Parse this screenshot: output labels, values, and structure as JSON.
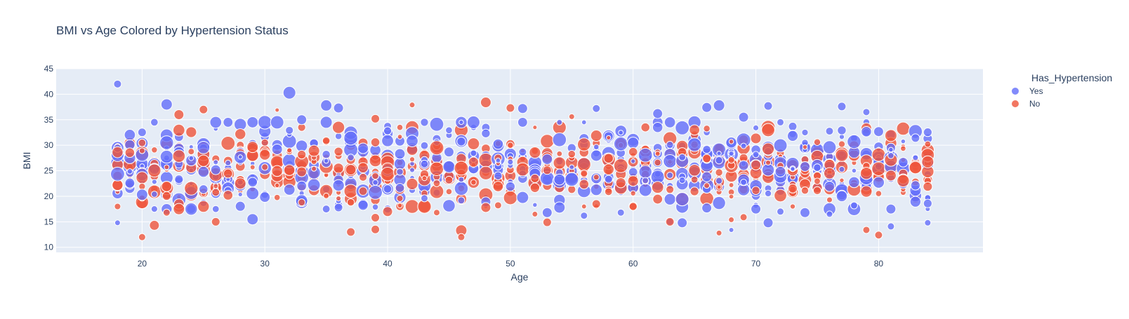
{
  "chart_data": {
    "type": "scatter",
    "title": "BMI vs Age Colored by Hypertension Status",
    "xlabel": "Age",
    "ylabel": "BMI",
    "xlim": [
      13,
      88.5
    ],
    "ylim": [
      9,
      45
    ],
    "xticks": [
      20,
      30,
      40,
      50,
      60,
      70,
      80
    ],
    "yticks": [
      10,
      15,
      20,
      25,
      30,
      35,
      40,
      45
    ],
    "grid": true,
    "legend": {
      "title": "Has_Hypertension",
      "position": "top-right"
    },
    "age_range": [
      18,
      84
    ],
    "series": [
      {
        "name": "Yes",
        "color": "#636efa",
        "points": [
          [
            18,
            42.0
          ],
          [
            22,
            38.0
          ],
          [
            32,
            40.3
          ],
          [
            35,
            37.8
          ],
          [
            36,
            37.3
          ],
          [
            51,
            37.2
          ],
          [
            57,
            37.2
          ],
          [
            66,
            37.4
          ],
          [
            67,
            37.8
          ],
          [
            69,
            35.5
          ],
          [
            71,
            37.7
          ],
          [
            77,
            37.6
          ],
          [
            79,
            36.5
          ],
          [
            62,
            36.2
          ],
          [
            33,
            35.0
          ],
          [
            18,
            14.8
          ],
          [
            29,
            15.5
          ],
          [
            53,
            16.8
          ],
          [
            54,
            17.8
          ],
          [
            64,
            14.8
          ],
          [
            66,
            17.7
          ],
          [
            70,
            17.5
          ],
          [
            71,
            14.8
          ],
          [
            74,
            16.8
          ],
          [
            81,
            17.5
          ],
          [
            81,
            14.1
          ],
          [
            84,
            14.8
          ],
          [
            63,
            15.0
          ],
          [
            56,
            16.2
          ],
          [
            46,
            19.2
          ],
          [
            36,
            17.8
          ],
          [
            43,
            19.6
          ],
          [
            59,
            16.8
          ],
          [
            68,
            13.4
          ],
          [
            72,
            17.0
          ],
          [
            76,
            16.5
          ],
          [
            78,
            18.2
          ]
        ],
        "sizes": [
          11,
          16,
          18,
          16,
          14,
          14,
          11,
          14,
          16,
          14,
          12,
          12,
          10,
          14,
          14,
          8,
          16,
          14,
          16,
          14,
          14,
          14,
          14,
          14,
          14,
          10,
          9,
          10,
          10,
          10,
          12,
          10,
          10,
          7,
          10,
          9,
          10
        ]
      },
      {
        "name": "No",
        "color": "#ef553b",
        "points": [
          [
            48,
            38.4
          ],
          [
            50,
            37.3
          ],
          [
            31,
            36.9
          ],
          [
            25,
            37.0
          ],
          [
            23,
            36.0
          ],
          [
            39,
            35.2
          ],
          [
            55,
            35.6
          ],
          [
            42,
            37.9
          ],
          [
            20,
            12.0
          ],
          [
            21,
            14.3
          ],
          [
            26,
            15.0
          ],
          [
            37,
            13.0
          ],
          [
            39,
            13.5
          ],
          [
            46,
            13.3
          ],
          [
            46,
            12.0
          ],
          [
            53,
            14.9
          ],
          [
            63,
            15.0
          ],
          [
            67,
            12.8
          ],
          [
            69,
            15.9
          ],
          [
            79,
            13.4
          ],
          [
            80,
            12.4
          ],
          [
            39,
            15.8
          ],
          [
            44,
            16.8
          ],
          [
            52,
            16.5
          ],
          [
            57,
            18.5
          ],
          [
            40,
            17.0
          ],
          [
            48,
            17.8
          ],
          [
            23,
            17.5
          ],
          [
            68,
            15.4
          ],
          [
            33,
            18.8
          ],
          [
            22,
            16.8
          ]
        ],
        "sizes": [
          15,
          12,
          6,
          12,
          14,
          12,
          8,
          8,
          10,
          14,
          12,
          12,
          12,
          16,
          10,
          12,
          12,
          8,
          10,
          10,
          11,
          12,
          9,
          8,
          12,
          14,
          14,
          16,
          8,
          10,
          10
        ]
      }
    ]
  }
}
